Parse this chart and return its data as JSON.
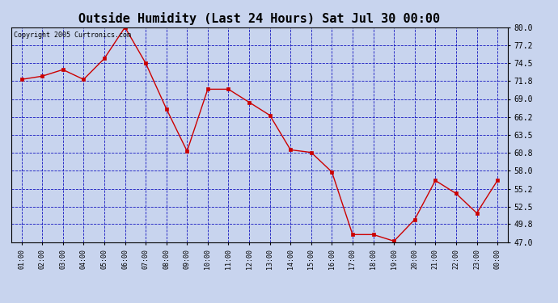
{
  "title": "Outside Humidity (Last 24 Hours) Sat Jul 30 00:00",
  "copyright_text": "Copyright 2005 Curtronics.com",
  "x_labels": [
    "01:00",
    "02:00",
    "03:00",
    "04:00",
    "05:00",
    "06:00",
    "07:00",
    "08:00",
    "09:00",
    "10:00",
    "11:00",
    "12:00",
    "13:00",
    "14:00",
    "15:00",
    "16:00",
    "17:00",
    "18:00",
    "19:00",
    "20:00",
    "21:00",
    "22:00",
    "23:00",
    "00:00"
  ],
  "x_values": [
    1,
    2,
    3,
    4,
    5,
    6,
    7,
    8,
    9,
    10,
    11,
    12,
    13,
    14,
    15,
    16,
    17,
    18,
    19,
    20,
    21,
    22,
    23,
    24
  ],
  "y_values": [
    72.0,
    72.5,
    73.5,
    72.0,
    75.2,
    80.0,
    74.5,
    67.5,
    61.0,
    70.5,
    70.5,
    68.5,
    66.5,
    61.2,
    60.8,
    57.8,
    48.2,
    48.2,
    47.2,
    50.5,
    56.5,
    54.5,
    51.5,
    56.5
  ],
  "line_color": "#cc0000",
  "marker": "s",
  "marker_size": 2.5,
  "background_color": "#c8d4ee",
  "plot_bg_color": "#c8d4ee",
  "grid_color": "#0000bb",
  "title_fontsize": 11,
  "yticks": [
    47.0,
    49.8,
    52.5,
    55.2,
    58.0,
    60.8,
    63.5,
    66.2,
    69.0,
    71.8,
    74.5,
    77.2,
    80.0
  ],
  "ylim": [
    47.0,
    80.0
  ],
  "xlim": [
    0.5,
    24.5
  ],
  "figwidth": 6.9,
  "figheight": 3.75,
  "dpi": 100
}
